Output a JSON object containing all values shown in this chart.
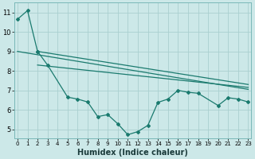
{
  "xlabel": "Humidex (Indice chaleur)",
  "bg_color": "#cce8e8",
  "grid_color": "#aad0d0",
  "line_color": "#1a7a6e",
  "line_spike": {
    "x": [
      0,
      1,
      2
    ],
    "y": [
      10.65,
      11.1,
      9.0
    ]
  },
  "line_wiggly": {
    "x": [
      2,
      3,
      5,
      6,
      7,
      8,
      9,
      10,
      11,
      12,
      13,
      14,
      15,
      16,
      17,
      18,
      20,
      21,
      22,
      23
    ],
    "y": [
      9.0,
      8.3,
      6.65,
      6.55,
      6.4,
      5.65,
      5.75,
      5.28,
      4.72,
      4.88,
      5.2,
      6.38,
      6.55,
      7.0,
      6.9,
      6.85,
      6.22,
      6.62,
      6.55,
      6.4
    ]
  },
  "trend1_x": [
    0,
    23
  ],
  "trend1_y": [
    9.0,
    7.05
  ],
  "trend2_x": [
    2,
    23
  ],
  "trend2_y": [
    9.0,
    7.3
  ],
  "trend3_x": [
    2,
    23
  ],
  "trend3_y": [
    8.3,
    7.15
  ],
  "xlim": [
    -0.3,
    23.3
  ],
  "ylim": [
    4.55,
    11.5
  ],
  "xticks": [
    0,
    1,
    2,
    3,
    4,
    5,
    6,
    7,
    8,
    9,
    10,
    11,
    12,
    13,
    14,
    15,
    16,
    17,
    18,
    19,
    20,
    21,
    22,
    23
  ],
  "yticks": [
    5,
    6,
    7,
    8,
    9,
    10,
    11
  ],
  "xlabel_fontsize": 7,
  "tick_fontsize_x": 5,
  "tick_fontsize_y": 6
}
